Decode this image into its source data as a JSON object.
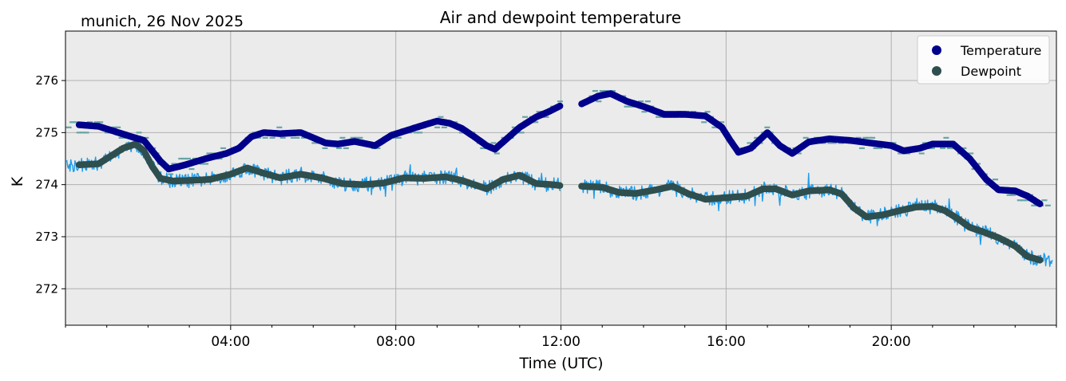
{
  "chart_data": {
    "type": "scatter",
    "title": "Air and dewpoint temperature",
    "subtitle": "munich, 26 Nov 2025",
    "xlabel": "Time (UTC)",
    "ylabel": "K",
    "xlim": [
      0,
      24
    ],
    "ylim": [
      271.3,
      276.95
    ],
    "x_ticks": [
      {
        "value": 4,
        "label": "04:00"
      },
      {
        "value": 8,
        "label": "08:00"
      },
      {
        "value": 12,
        "label": "12:00"
      },
      {
        "value": 16,
        "label": "16:00"
      },
      {
        "value": 20,
        "label": "20:00"
      }
    ],
    "y_ticks": [
      {
        "value": 272,
        "label": "272"
      },
      {
        "value": 273,
        "label": "273"
      },
      {
        "value": 274,
        "label": "274"
      },
      {
        "value": 275,
        "label": "275"
      },
      {
        "value": 276,
        "label": "276"
      }
    ],
    "grid": true,
    "legend": {
      "position": "top-right",
      "entries": [
        "Temperature",
        "Dewpoint"
      ]
    },
    "series": [
      {
        "name": "Temperature",
        "color": "#00008b",
        "raw_color": "#6aa4a4",
        "x": [
          0.33,
          0.8,
          1.2,
          1.6,
          1.9,
          2.1,
          2.3,
          2.5,
          2.9,
          3.4,
          3.9,
          4.2,
          4.5,
          4.8,
          5.2,
          5.7,
          6.0,
          6.3,
          6.6,
          7.0,
          7.5,
          7.9,
          8.3,
          8.7,
          9.0,
          9.3,
          9.6,
          9.9,
          10.2,
          10.4,
          10.6,
          11.0,
          11.4,
          11.7,
          12.0,
          12.5,
          12.9,
          13.2,
          13.6,
          14.0,
          14.5,
          15.0,
          15.5,
          15.9,
          16.1,
          16.3,
          16.6,
          17.0,
          17.3,
          17.6,
          18.0,
          18.5,
          19.0,
          19.5,
          20.0,
          20.3,
          20.7,
          21.0,
          21.5,
          21.9,
          22.3,
          22.6,
          23.0,
          23.3,
          23.6
        ],
        "values": [
          275.15,
          275.12,
          275.02,
          274.92,
          274.85,
          274.65,
          274.45,
          274.3,
          274.38,
          274.5,
          274.6,
          274.7,
          274.92,
          275.0,
          274.98,
          275.0,
          274.9,
          274.8,
          274.78,
          274.83,
          274.75,
          274.95,
          275.05,
          275.15,
          275.22,
          275.18,
          275.08,
          274.92,
          274.75,
          274.68,
          274.82,
          275.1,
          275.3,
          275.4,
          275.52,
          275.55,
          275.7,
          275.75,
          275.6,
          275.5,
          275.35,
          275.35,
          275.32,
          275.1,
          274.85,
          274.62,
          274.7,
          275.0,
          274.75,
          274.6,
          274.82,
          274.88,
          274.85,
          274.8,
          274.75,
          274.65,
          274.7,
          274.78,
          274.78,
          274.5,
          274.1,
          273.9,
          273.88,
          273.78,
          273.63
        ]
      },
      {
        "name": "Dewpoint",
        "color": "#2f4f4f",
        "raw_color": "#1e9bea",
        "x": [
          0.33,
          0.8,
          1.1,
          1.4,
          1.7,
          1.9,
          2.1,
          2.3,
          2.6,
          3.0,
          3.5,
          4.0,
          4.4,
          4.8,
          5.2,
          5.7,
          6.2,
          6.7,
          7.2,
          7.7,
          8.2,
          8.7,
          9.2,
          9.6,
          9.9,
          10.2,
          10.6,
          11.0,
          11.4,
          11.8,
          12.0,
          12.5,
          13.0,
          13.4,
          13.8,
          14.3,
          14.7,
          15.1,
          15.5,
          16.0,
          16.5,
          16.9,
          17.2,
          17.6,
          18.0,
          18.5,
          18.8,
          19.1,
          19.4,
          19.8,
          20.2,
          20.6,
          21.0,
          21.3,
          21.6,
          21.9,
          22.2,
          22.6,
          23.0,
          23.3,
          23.6
        ],
        "values": [
          274.38,
          274.4,
          274.55,
          274.7,
          274.78,
          274.65,
          274.35,
          274.12,
          274.07,
          274.08,
          274.1,
          274.2,
          274.32,
          274.22,
          274.13,
          274.2,
          274.13,
          274.02,
          274.0,
          274.03,
          274.13,
          274.12,
          274.15,
          274.08,
          274.0,
          273.92,
          274.1,
          274.18,
          274.02,
          274.0,
          273.98,
          273.97,
          273.95,
          273.85,
          273.83,
          273.9,
          273.97,
          273.82,
          273.72,
          273.75,
          273.78,
          273.92,
          273.92,
          273.8,
          273.88,
          273.9,
          273.82,
          273.55,
          273.38,
          273.42,
          273.5,
          273.57,
          273.58,
          273.5,
          273.35,
          273.18,
          273.1,
          272.98,
          272.82,
          272.62,
          272.55
        ]
      }
    ]
  }
}
